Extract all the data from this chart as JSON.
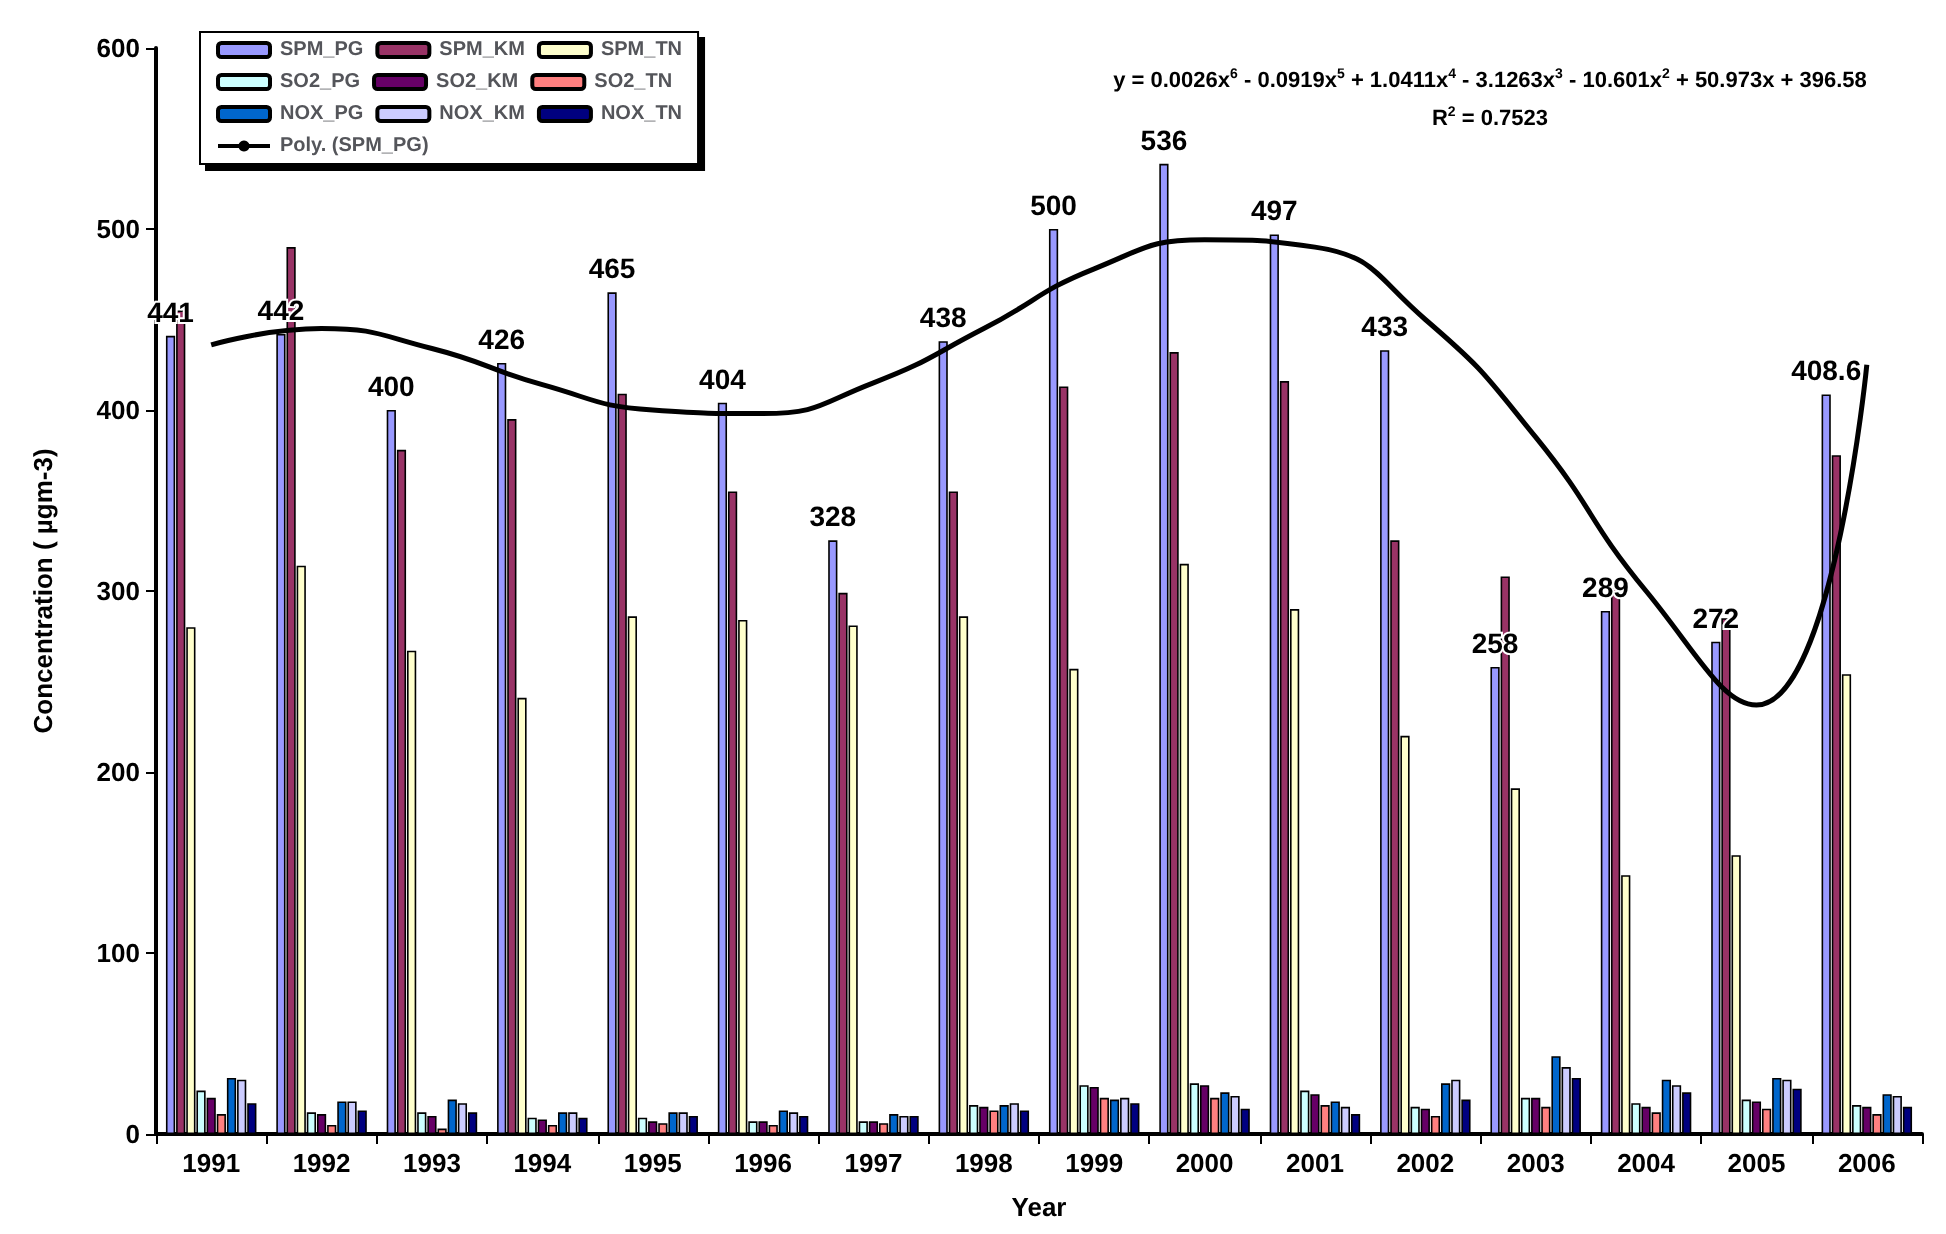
{
  "chart_data": {
    "type": "bar",
    "xlabel": "Year",
    "ylabel": "Concentration ( µgm-3)",
    "categories": [
      "1991",
      "1992",
      "1993",
      "1994",
      "1995",
      "1996",
      "1997",
      "1998",
      "1999",
      "2000",
      "2001",
      "2002",
      "2003",
      "2004",
      "2005",
      "2006"
    ],
    "series": [
      {
        "name": "SPM_PG",
        "color": "#9999ff",
        "values": [
          441,
          442,
          400,
          426,
          465,
          404,
          328,
          438,
          500,
          536,
          497,
          433,
          258,
          289,
          272,
          408.6
        ],
        "value_labels": [
          "441",
          "442",
          "400",
          "426",
          "465",
          "404",
          "328",
          "438",
          "500",
          "536",
          "497",
          "433",
          "258",
          "289",
          "272",
          "408.6"
        ]
      },
      {
        "name": "SPM_KM",
        "color": "#993366",
        "values": [
          455,
          490,
          378,
          395,
          409,
          355,
          299,
          355,
          413,
          432,
          416,
          328,
          308,
          302,
          285,
          375
        ]
      },
      {
        "name": "SPM_TN",
        "color": "#ffffcc",
        "values": [
          280,
          314,
          267,
          241,
          286,
          284,
          281,
          286,
          257,
          315,
          290,
          220,
          191,
          143,
          154,
          254
        ]
      },
      {
        "name": "SO2_PG",
        "color": "#ccffff",
        "values": [
          24,
          12,
          12,
          9,
          9,
          7,
          7,
          16,
          27,
          28,
          24,
          15,
          20,
          17,
          19,
          16
        ]
      },
      {
        "name": "SO2_KM",
        "color": "#660066",
        "values": [
          20,
          11,
          10,
          8,
          7,
          7,
          7,
          15,
          26,
          27,
          22,
          14,
          20,
          15,
          18,
          15
        ]
      },
      {
        "name": "SO2_TN",
        "color": "#ff8080",
        "values": [
          11,
          5,
          3,
          5,
          6,
          5,
          6,
          13,
          20,
          20,
          16,
          10,
          15,
          12,
          14,
          11
        ]
      },
      {
        "name": "NOX_PG",
        "color": "#0066cc",
        "values": [
          31,
          18,
          19,
          12,
          12,
          13,
          11,
          16,
          19,
          23,
          18,
          28,
          43,
          30,
          31,
          22
        ]
      },
      {
        "name": "NOX_KM",
        "color": "#ccccff",
        "values": [
          30,
          18,
          17,
          12,
          12,
          12,
          10,
          17,
          20,
          21,
          15,
          30,
          37,
          27,
          30,
          21
        ]
      },
      {
        "name": "NOX_TN",
        "color": "#000080",
        "values": [
          17,
          13,
          12,
          9,
          10,
          10,
          10,
          13,
          17,
          14,
          11,
          19,
          31,
          23,
          25,
          15
        ]
      },
      {
        "name": "Poly. (SPM_PG)",
        "type": "line",
        "color": "#000000",
        "line_style": "solid",
        "marker": "none",
        "values": [
          436,
          445,
          434,
          414,
          400,
          398,
          415,
          445,
          478,
          494,
          490,
          450,
          385,
          300,
          237,
          425
        ]
      }
    ],
    "ylim": [
      0,
      600
    ],
    "yticks": [
      0,
      100,
      200,
      300,
      400,
      500,
      600
    ],
    "grid": false,
    "legend": "top left",
    "annotations": [
      "y = 0.0026x$^{6}$ - 0.0919x$^{5}$ + 1.0411x$^{4}$ - 3.1263x$^{3}$ - 10.601x$^{2}$ + 50.973x + 396.58",
      "R$^{2}$ = 0.7523"
    ]
  }
}
